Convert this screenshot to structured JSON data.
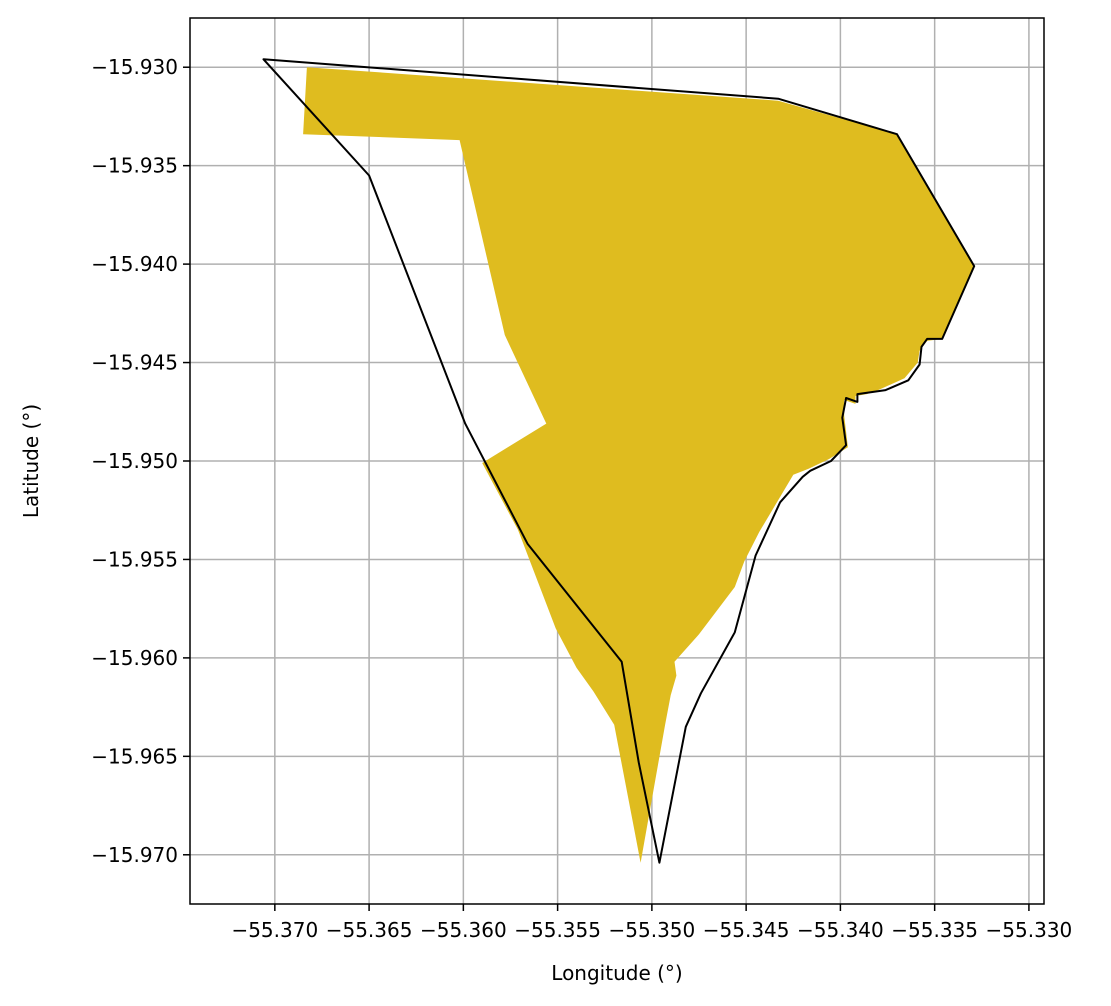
{
  "chart_data": {
    "type": "area",
    "xlabel": "Longitude (°)",
    "ylabel": "Latitude (°)",
    "xlim": [
      -55.3745,
      -55.3292
    ],
    "ylim": [
      -15.9725,
      -15.9275
    ],
    "xticks": [
      -55.37,
      -55.365,
      -55.36,
      -55.355,
      -55.35,
      -55.345,
      -55.34,
      -55.335,
      -55.33
    ],
    "xtick_labels": [
      "−55.370",
      "−55.365",
      "−55.360",
      "−55.355",
      "−55.350",
      "−55.345",
      "−55.340",
      "−55.335",
      "−55.330"
    ],
    "yticks": [
      -15.93,
      -15.935,
      -15.94,
      -15.945,
      -15.95,
      -15.955,
      -15.96,
      -15.965,
      -15.97
    ],
    "ytick_labels": [
      "−15.930",
      "−15.935",
      "−15.940",
      "−15.945",
      "−15.950",
      "−15.955",
      "−15.960",
      "−15.965",
      "−15.970"
    ],
    "grid": true,
    "colors": {
      "fill": "#dfbc1f",
      "outline": "#000000",
      "grid": "#b0b0b0"
    },
    "filled_region": [
      [
        -55.3683,
        -15.93
      ],
      [
        -55.3433,
        -15.9317
      ],
      [
        -55.337,
        -15.9334
      ],
      [
        -55.3329,
        -15.9401
      ],
      [
        -55.3346,
        -15.9438
      ],
      [
        -55.3354,
        -15.9439
      ],
      [
        -55.3358,
        -15.9444
      ],
      [
        -55.3359,
        -15.945
      ],
      [
        -55.3366,
        -15.9458
      ],
      [
        -55.338,
        -15.9464
      ],
      [
        -55.3386,
        -15.9466
      ],
      [
        -55.3392,
        -15.9467
      ],
      [
        -55.3392,
        -15.9471
      ],
      [
        -55.3398,
        -15.9469
      ],
      [
        -55.3398,
        -15.9477
      ],
      [
        -55.3396,
        -15.9493
      ],
      [
        -55.3406,
        -15.9499
      ],
      [
        -55.3417,
        -15.9504
      ],
      [
        -55.3425,
        -15.9507
      ],
      [
        -55.3443,
        -15.9536
      ],
      [
        -55.3451,
        -15.9551
      ],
      [
        -55.3456,
        -15.9564
      ],
      [
        -55.3475,
        -15.9588
      ],
      [
        -55.3488,
        -15.9602
      ],
      [
        -55.3487,
        -15.9609
      ],
      [
        -55.349,
        -15.9619
      ],
      [
        -55.3493,
        -15.9634
      ],
      [
        -55.3506,
        -15.9704
      ],
      [
        -55.352,
        -15.9634
      ],
      [
        -55.3531,
        -15.9617
      ],
      [
        -55.354,
        -15.9605
      ],
      [
        -55.3551,
        -15.9585
      ],
      [
        -55.3571,
        -15.9535
      ],
      [
        -55.359,
        -15.9501
      ],
      [
        -55.3556,
        -15.9481
      ],
      [
        -55.3578,
        -15.9436
      ],
      [
        -55.3602,
        -15.9337
      ],
      [
        -55.3685,
        -15.9334
      ]
    ],
    "outline": [
      [
        -55.3706,
        -15.9296
      ],
      [
        -55.3433,
        -15.9316
      ],
      [
        -55.337,
        -15.9334
      ],
      [
        -55.3329,
        -15.9401
      ],
      [
        -55.3346,
        -15.9438
      ],
      [
        -55.3354,
        -15.9438
      ],
      [
        -55.3357,
        -15.9442
      ],
      [
        -55.3358,
        -15.9451
      ],
      [
        -55.3364,
        -15.9459
      ],
      [
        -55.3376,
        -15.9464
      ],
      [
        -55.3391,
        -15.9466
      ],
      [
        -55.3391,
        -15.947
      ],
      [
        -55.3397,
        -15.9468
      ],
      [
        -55.3399,
        -15.9478
      ],
      [
        -55.3397,
        -15.9492
      ],
      [
        -55.3405,
        -15.95
      ],
      [
        -55.3416,
        -15.9505
      ],
      [
        -55.342,
        -15.9508
      ],
      [
        -55.3432,
        -15.9521
      ],
      [
        -55.3445,
        -15.9548
      ],
      [
        -55.3456,
        -15.9587
      ],
      [
        -55.3474,
        -15.9618
      ],
      [
        -55.3482,
        -15.9635
      ],
      [
        -55.3496,
        -15.9704
      ],
      [
        -55.3507,
        -15.9653
      ],
      [
        -55.3516,
        -15.9602
      ],
      [
        -55.3566,
        -15.9542
      ],
      [
        -55.3599,
        -15.9481
      ],
      [
        -55.365,
        -15.9355
      ]
    ]
  }
}
